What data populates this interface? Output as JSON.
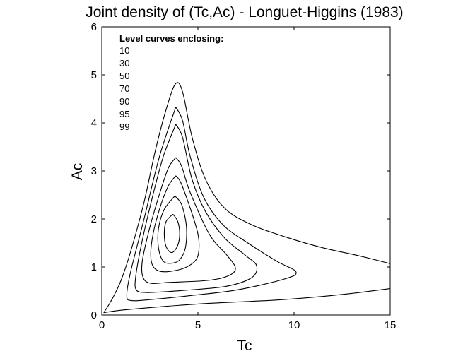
{
  "chart_data": {
    "type": "line",
    "title": "Joint density of (Tc,Ac) - Longuet-Higgins (1983)",
    "xlabel": "Tc",
    "ylabel": "Ac",
    "xlim": [
      0,
      15
    ],
    "ylim": [
      0,
      6
    ],
    "xticks": [
      0,
      5,
      10,
      15
    ],
    "yticks": [
      0,
      1,
      2,
      3,
      4,
      5,
      6
    ],
    "grid": false,
    "legend": {
      "title": "Level curves enclosing:",
      "placement": "top-left",
      "entries": [
        "10",
        "30",
        "50",
        "70",
        "90",
        "95",
        "99"
      ]
    },
    "series": [
      {
        "level": "10",
        "points": [
          [
            3.7,
            2.1
          ],
          [
            3.95,
            1.95
          ],
          [
            4.05,
            1.7
          ],
          [
            3.95,
            1.45
          ],
          [
            3.65,
            1.3
          ],
          [
            3.35,
            1.42
          ],
          [
            3.25,
            1.7
          ],
          [
            3.35,
            1.95
          ],
          [
            3.7,
            2.1
          ]
        ]
      },
      {
        "level": "30",
        "points": [
          [
            3.8,
            2.48
          ],
          [
            4.15,
            2.3
          ],
          [
            4.4,
            1.85
          ],
          [
            4.35,
            1.4
          ],
          [
            4.05,
            1.15
          ],
          [
            3.65,
            1.08
          ],
          [
            3.2,
            1.12
          ],
          [
            2.95,
            1.4
          ],
          [
            2.95,
            1.8
          ],
          [
            3.25,
            2.2
          ],
          [
            3.8,
            2.48
          ]
        ]
      },
      {
        "level": "50",
        "points": [
          [
            3.85,
            2.9
          ],
          [
            4.15,
            2.72
          ],
          [
            4.8,
            1.98
          ],
          [
            5.05,
            1.55
          ],
          [
            4.95,
            1.18
          ],
          [
            4.3,
            0.98
          ],
          [
            3.3,
            0.9
          ],
          [
            2.75,
            0.97
          ],
          [
            2.55,
            1.2
          ],
          [
            2.65,
            1.65
          ],
          [
            3.0,
            2.2
          ],
          [
            3.45,
            2.68
          ],
          [
            3.85,
            2.9
          ]
        ]
      },
      {
        "level": "70",
        "points": [
          [
            3.85,
            3.28
          ],
          [
            4.15,
            3.1
          ],
          [
            4.6,
            2.55
          ],
          [
            5.6,
            1.68
          ],
          [
            6.5,
            1.25
          ],
          [
            6.95,
            0.98
          ],
          [
            6.6,
            0.82
          ],
          [
            5.5,
            0.72
          ],
          [
            3.5,
            0.68
          ],
          [
            2.55,
            0.66
          ],
          [
            2.15,
            0.78
          ],
          [
            2.1,
            1.1
          ],
          [
            2.45,
            1.75
          ],
          [
            2.95,
            2.45
          ],
          [
            3.45,
            3.05
          ],
          [
            3.85,
            3.28
          ]
        ]
      },
      {
        "level": "90",
        "points": [
          [
            3.85,
            3.97
          ],
          [
            4.2,
            3.7
          ],
          [
            4.7,
            2.82
          ],
          [
            5.4,
            2.15
          ],
          [
            6.4,
            1.6
          ],
          [
            7.45,
            1.25
          ],
          [
            8.05,
            1.03
          ],
          [
            7.8,
            0.78
          ],
          [
            6.5,
            0.6
          ],
          [
            4.5,
            0.52
          ],
          [
            3.0,
            0.48
          ],
          [
            2.2,
            0.47
          ],
          [
            1.8,
            0.52
          ],
          [
            1.75,
            0.75
          ],
          [
            2.05,
            1.45
          ],
          [
            2.6,
            2.4
          ],
          [
            3.2,
            3.3
          ],
          [
            3.85,
            3.97
          ]
        ]
      },
      {
        "level": "95",
        "points": [
          [
            3.85,
            4.33
          ],
          [
            4.2,
            4.05
          ],
          [
            4.6,
            3.3
          ],
          [
            5.3,
            2.45
          ],
          [
            6.3,
            1.88
          ],
          [
            7.6,
            1.5
          ],
          [
            9.1,
            1.12
          ],
          [
            10.1,
            0.9
          ],
          [
            9.5,
            0.75
          ],
          [
            7.0,
            0.52
          ],
          [
            4.5,
            0.4
          ],
          [
            2.5,
            0.32
          ],
          [
            1.55,
            0.3
          ],
          [
            1.3,
            0.4
          ],
          [
            1.5,
            0.9
          ],
          [
            2.2,
            2.0
          ],
          [
            3.0,
            3.3
          ],
          [
            3.85,
            4.33
          ]
        ]
      },
      {
        "level": "99",
        "points": [
          [
            0.1,
            0.05
          ],
          [
            0.3,
            0.17
          ],
          [
            0.6,
            0.38
          ],
          [
            1.0,
            0.72
          ],
          [
            1.5,
            1.32
          ],
          [
            2.2,
            2.35
          ],
          [
            2.8,
            3.45
          ],
          [
            3.4,
            4.35
          ],
          [
            3.85,
            4.82
          ],
          [
            4.2,
            4.65
          ],
          [
            4.7,
            3.7
          ],
          [
            5.4,
            2.82
          ],
          [
            6.4,
            2.22
          ],
          [
            7.8,
            1.88
          ],
          [
            9.6,
            1.62
          ],
          [
            11.5,
            1.4
          ],
          [
            13.3,
            1.24
          ],
          [
            15.0,
            1.07
          ]
        ]
      },
      {
        "level": "99-lower",
        "points": [
          [
            0.1,
            0.05
          ],
          [
            1.0,
            0.1
          ],
          [
            3.0,
            0.17
          ],
          [
            5.0,
            0.23
          ],
          [
            7.0,
            0.27
          ],
          [
            9.0,
            0.31
          ],
          [
            11.0,
            0.37
          ],
          [
            13.0,
            0.45
          ],
          [
            15.0,
            0.55
          ]
        ]
      }
    ]
  }
}
